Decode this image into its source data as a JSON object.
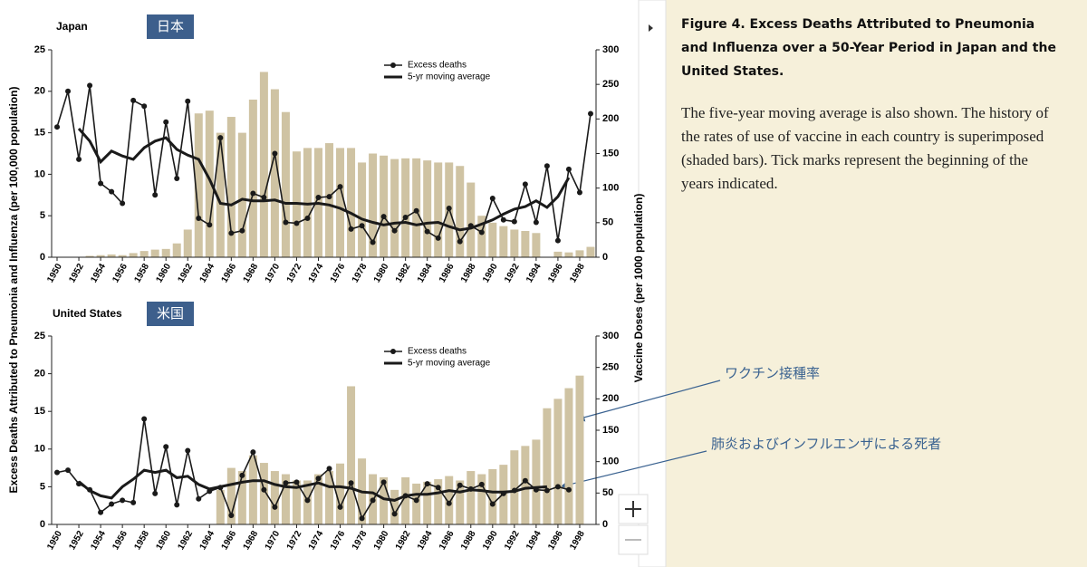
{
  "shared_axes": {
    "ylabel": "Excess Deaths Attributed to Pneumonia and Influenza (per 100,000 population)",
    "y2label": "Vaccine Doses (per 1000 population)"
  },
  "caption": {
    "title": "Figure 4. Excess Deaths Attributed to Pneumonia and Influenza over a 50-Year Period in Japan and the United States.",
    "body": "The five-year moving average is also shown. The history of the rates of use of vaccine in each country is superimposed (shaded bars). Tick marks represent the beginning of the years indicated."
  },
  "annotations": [
    "ワクチン接種率",
    "肺炎およびインフルエンザによる死者"
  ],
  "chart_data": [
    {
      "type": "combo",
      "title": "Japan",
      "badge": "日本",
      "x": [
        1950,
        1951,
        1952,
        1953,
        1954,
        1955,
        1956,
        1957,
        1958,
        1959,
        1960,
        1961,
        1962,
        1963,
        1964,
        1965,
        1966,
        1967,
        1968,
        1969,
        1970,
        1971,
        1972,
        1973,
        1974,
        1975,
        1976,
        1977,
        1978,
        1979,
        1980,
        1981,
        1982,
        1983,
        1984,
        1985,
        1986,
        1987,
        1988,
        1989,
        1990,
        1991,
        1992,
        1993,
        1994,
        1995,
        1996,
        1997,
        1998,
        1999
      ],
      "xlim": [
        1949.5,
        1999.5
      ],
      "xticks": [
        1950,
        1952,
        1954,
        1956,
        1958,
        1960,
        1962,
        1964,
        1966,
        1968,
        1970,
        1972,
        1974,
        1976,
        1978,
        1980,
        1982,
        1984,
        1986,
        1988,
        1990,
        1992,
        1994,
        1996,
        1998
      ],
      "ylim": [
        0,
        25
      ],
      "yticks": [
        0,
        5,
        10,
        15,
        20,
        25
      ],
      "y2lim": [
        0,
        300
      ],
      "y2ticks": [
        0,
        50,
        100,
        150,
        200,
        250,
        300
      ],
      "series": [
        {
          "style": "bar",
          "axis": "y2",
          "color": "#cfc3a3",
          "values": [
            0,
            0,
            0,
            2,
            3,
            4,
            3,
            6,
            9,
            11,
            12,
            20,
            40,
            208,
            212,
            180,
            203,
            180,
            228,
            268,
            243,
            210,
            153,
            158,
            158,
            165,
            158,
            158,
            137,
            150,
            147,
            142,
            143,
            143,
            140,
            137,
            137,
            132,
            108,
            60,
            50,
            45,
            40,
            38,
            35,
            0,
            8,
            7,
            10,
            15
          ]
        },
        {
          "name": "Excess deaths",
          "style": "line-marker",
          "color": "#1a1a1a",
          "values": [
            15.7,
            20,
            11.8,
            20.7,
            8.9,
            7.9,
            6.5,
            18.9,
            18.2,
            7.5,
            16.3,
            9.5,
            18.8,
            4.7,
            3.9,
            14.4,
            2.9,
            3.2,
            7.7,
            7.2,
            12.5,
            4.2,
            4.1,
            4.7,
            7.2,
            7.3,
            8.5,
            3.4,
            3.8,
            1.8,
            4.9,
            3.2,
            4.8,
            5.6,
            3.1,
            2.3,
            5.9,
            1.9,
            3.8,
            3.0,
            7.1,
            4.5,
            4.3,
            8.8,
            4.2,
            11.0,
            2.0,
            10.6,
            7.8,
            17.3
          ]
        },
        {
          "name": "5-yr moving average",
          "style": "line",
          "color": "#1a1a1a",
          "values": [
            null,
            null,
            15.5,
            14.0,
            11.5,
            12.8,
            12.2,
            11.8,
            13.2,
            14.0,
            14.4,
            13.0,
            12.3,
            11.8,
            9.4,
            6.5,
            6.3,
            7.0,
            6.8,
            6.8,
            6.9,
            6.5,
            6.5,
            6.4,
            6.5,
            6.3,
            5.9,
            5.3,
            4.6,
            4.2,
            3.9,
            4.1,
            4.2,
            3.9,
            4.1,
            4.2,
            3.7,
            3.3,
            3.5,
            4.0,
            4.5,
            5.2,
            5.8,
            6.1,
            6.8,
            6.0,
            7.3,
            9.6,
            null,
            null
          ]
        }
      ]
    },
    {
      "type": "combo",
      "title": "United States",
      "badge": "米国",
      "x": [
        1950,
        1951,
        1952,
        1953,
        1954,
        1955,
        1956,
        1957,
        1958,
        1959,
        1960,
        1961,
        1962,
        1963,
        1964,
        1965,
        1966,
        1967,
        1968,
        1969,
        1970,
        1971,
        1972,
        1973,
        1974,
        1975,
        1976,
        1977,
        1978,
        1979,
        1980,
        1981,
        1982,
        1983,
        1984,
        1985,
        1986,
        1987,
        1988,
        1989,
        1990,
        1991,
        1992,
        1993,
        1994,
        1995,
        1996,
        1997,
        1998,
        1999
      ],
      "xlim": [
        1949.5,
        1999.5
      ],
      "xticks": [
        1950,
        1952,
        1954,
        1956,
        1958,
        1960,
        1962,
        1964,
        1966,
        1968,
        1970,
        1972,
        1974,
        1976,
        1978,
        1980,
        1982,
        1984,
        1986,
        1988,
        1990,
        1992,
        1994,
        1996,
        1998
      ],
      "ylim": [
        0,
        25
      ],
      "yticks": [
        0,
        5,
        10,
        15,
        20,
        25
      ],
      "y2lim": [
        0,
        300
      ],
      "y2ticks": [
        0,
        50,
        100,
        150,
        200,
        250,
        300
      ],
      "series": [
        {
          "style": "bar",
          "axis": "y2",
          "color": "#cfc3a3",
          "values": [
            0,
            0,
            0,
            0,
            0,
            0,
            0,
            0,
            0,
            0,
            0,
            0,
            0,
            0,
            0,
            55,
            90,
            85,
            110,
            98,
            85,
            80,
            70,
            70,
            80,
            85,
            97,
            220,
            105,
            80,
            75,
            55,
            75,
            65,
            68,
            72,
            77,
            70,
            85,
            80,
            88,
            95,
            118,
            125,
            135,
            185,
            200,
            217,
            237,
            null
          ]
        },
        {
          "name": "Excess deaths",
          "style": "line-marker",
          "color": "#1a1a1a",
          "values": [
            6.9,
            7.2,
            5.4,
            4.6,
            1.6,
            2.7,
            3.2,
            2.9,
            14.0,
            4.1,
            10.3,
            2.6,
            9.8,
            3.4,
            4.4,
            4.9,
            1.2,
            6.5,
            9.6,
            4.6,
            2.3,
            5.5,
            5.6,
            3.2,
            6.1,
            7.4,
            2.3,
            5.5,
            0.8,
            3.2,
            5.6,
            1.4,
            3.8,
            3.2,
            5.4,
            4.9,
            2.8,
            5.2,
            4.7,
            5.3,
            2.7,
            4.1,
            4.5,
            5.8,
            4.6,
            4.5,
            5.0,
            4.6,
            null,
            null
          ]
        },
        {
          "name": "5-yr moving average",
          "style": "line",
          "color": "#1a1a1a",
          "values": [
            null,
            null,
            5.7,
            4.5,
            3.8,
            3.5,
            5.0,
            6.0,
            7.2,
            6.9,
            7.2,
            6.2,
            6.4,
            5.3,
            4.7,
            5.0,
            5.3,
            5.6,
            5.8,
            5.8,
            5.3,
            5.0,
            4.9,
            5.2,
            5.5,
            5.0,
            5.0,
            4.8,
            4.3,
            4.2,
            3.4,
            3.2,
            3.8,
            4.0,
            4.0,
            4.2,
            4.5,
            4.3,
            4.6,
            4.5,
            4.3,
            4.3,
            4.4,
            4.8,
            4.9,
            5.0,
            null,
            null,
            null,
            null
          ]
        }
      ]
    }
  ]
}
